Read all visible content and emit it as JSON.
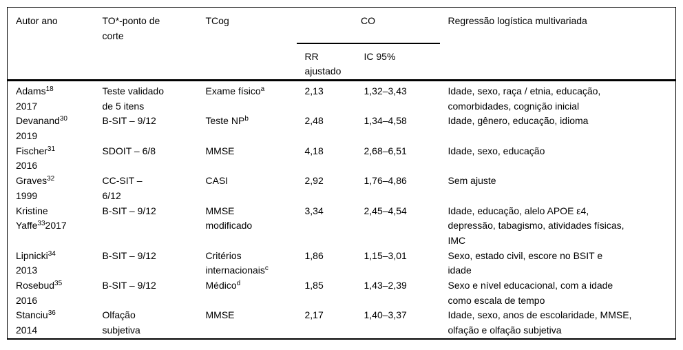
{
  "colors": {
    "text": "#000000",
    "background": "#ffffff",
    "rule": "#000000"
  },
  "table": {
    "headers": {
      "col_author": "Autor ano",
      "col_to": "TO*-ponto de corte",
      "col_tcog": "TCog",
      "col_co": "CO",
      "col_rr": "RR ajustado",
      "col_ic": "IC 95%",
      "col_regression": "Regressão logística multivariada"
    },
    "rows": [
      {
        "author": [
          {
            "t": "Adams"
          },
          {
            "sup": "18"
          },
          {
            "br": true
          },
          {
            "t": "2017"
          }
        ],
        "to": [
          {
            "t": "Teste validado"
          },
          {
            "br": true
          },
          {
            "t": "de 5 itens"
          }
        ],
        "tcog": [
          {
            "t": "Exame físico"
          },
          {
            "sup": "a"
          }
        ],
        "rr": "2,13",
        "ic": "1,32–3,43",
        "reg": [
          {
            "t": "Idade, sexo, raça / etnia, educação,"
          },
          {
            "br": true
          },
          {
            "t": "comorbidades, cognição inicial"
          }
        ]
      },
      {
        "author": [
          {
            "t": "Devanand"
          },
          {
            "sup": "30"
          },
          {
            "br": true
          },
          {
            "t": "2019"
          }
        ],
        "to": [
          {
            "t": "B-SIT – 9/12"
          }
        ],
        "tcog": [
          {
            "t": "Teste NP"
          },
          {
            "sup": "b"
          }
        ],
        "rr": "2,48",
        "ic": "1,34–4,58",
        "reg": [
          {
            "t": "Idade, gênero, educação, idioma"
          }
        ]
      },
      {
        "author": [
          {
            "t": "Fischer"
          },
          {
            "sup": "31"
          },
          {
            "br": true
          },
          {
            "t": "2016"
          }
        ],
        "to": [
          {
            "t": "SDOIT – 6/8"
          }
        ],
        "tcog": [
          {
            "t": "MMSE"
          }
        ],
        "rr": "4,18",
        "ic": "2,68–6,51",
        "reg": [
          {
            "t": "Idade, sexo, educação"
          }
        ]
      },
      {
        "author": [
          {
            "t": "Graves"
          },
          {
            "sup": "32"
          },
          {
            "br": true
          },
          {
            "t": "1999"
          }
        ],
        "to": [
          {
            "t": "CC-SIT –"
          },
          {
            "br": true
          },
          {
            "t": "6/12"
          }
        ],
        "tcog": [
          {
            "t": "CASI"
          }
        ],
        "rr": "2,92",
        "ic": "1,76–4,86",
        "reg": [
          {
            "t": "Sem ajuste"
          }
        ]
      },
      {
        "author": [
          {
            "t": "Kristine"
          },
          {
            "br": true
          },
          {
            "t": "Yaffe"
          },
          {
            "sup": "33"
          },
          {
            "t": "2017"
          }
        ],
        "to": [
          {
            "t": "B-SIT – 9/12"
          }
        ],
        "tcog": [
          {
            "t": "MMSE"
          },
          {
            "br": true
          },
          {
            "t": "modificado"
          }
        ],
        "rr": "3,34",
        "ic": "2,45–4,54",
        "reg": [
          {
            "t": "Idade, educação, alelo APOE ε4,"
          },
          {
            "br": true
          },
          {
            "t": "depressão, tabagismo, atividades físicas,"
          },
          {
            "br": true
          },
          {
            "t": "IMC"
          }
        ]
      },
      {
        "author": [
          {
            "t": "Lipnicki"
          },
          {
            "sup": "34"
          },
          {
            "br": true
          },
          {
            "t": "2013"
          }
        ],
        "to": [
          {
            "t": "B-SIT – 9/12"
          }
        ],
        "tcog": [
          {
            "t": "Critérios"
          },
          {
            "br": true
          },
          {
            "t": "internacionais"
          },
          {
            "sup": "c"
          }
        ],
        "rr": "1,86",
        "ic": "1,15–3,01",
        "reg": [
          {
            "t": "Sexo, estado civil, escore no BSIT e"
          },
          {
            "br": true
          },
          {
            "t": "idade"
          }
        ]
      },
      {
        "author": [
          {
            "t": "Rosebud"
          },
          {
            "sup": "35"
          },
          {
            "br": true
          },
          {
            "t": "2016"
          }
        ],
        "to": [
          {
            "t": "B-SIT – 9/12"
          }
        ],
        "tcog": [
          {
            "t": "Médico"
          },
          {
            "sup": "d"
          }
        ],
        "rr": "1,85",
        "ic": "1,43–2,39",
        "reg": [
          {
            "t": "Sexo e nível educacional, com a idade"
          },
          {
            "br": true
          },
          {
            "t": "como escala de tempo"
          }
        ]
      },
      {
        "author": [
          {
            "t": "Stanciu"
          },
          {
            "sup": "36"
          },
          {
            "br": true
          },
          {
            "t": "2014"
          }
        ],
        "to": [
          {
            "t": "Olfação"
          },
          {
            "br": true
          },
          {
            "t": "subjetiva"
          }
        ],
        "tcog": [
          {
            "t": "MMSE"
          }
        ],
        "rr": "2,17",
        "ic": "1,40–3,37",
        "reg": [
          {
            "t": "Idade, sexo, anos de escolaridade, MMSE,"
          },
          {
            "br": true
          },
          {
            "t": "olfação e olfação subjetiva"
          }
        ]
      }
    ]
  }
}
